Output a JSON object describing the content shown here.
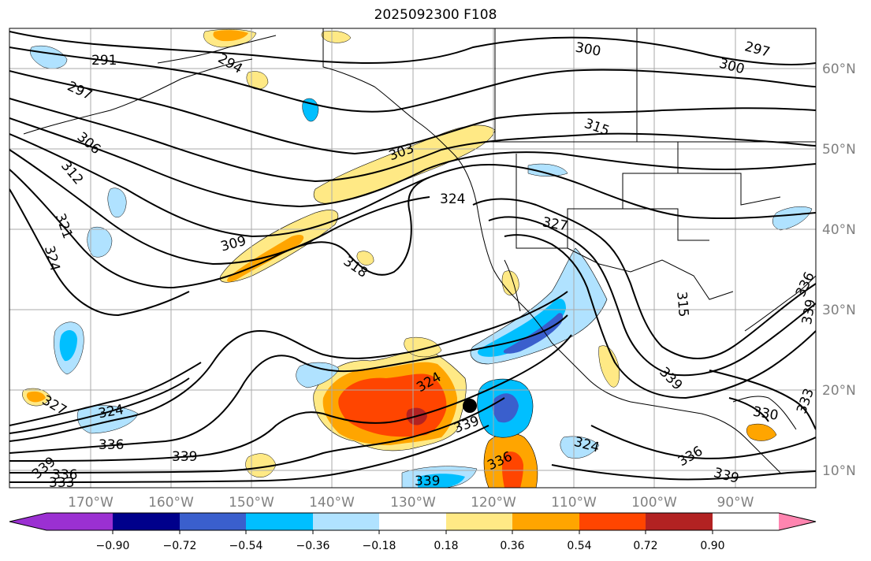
{
  "title": "2025092300 F108",
  "lat_labels": [
    "60°N",
    "50°N",
    "40°N",
    "30°N",
    "20°N",
    "10°N"
  ],
  "lon_labels": [
    "170°W",
    "160°W",
    "150°W",
    "140°W",
    "130°W",
    "120°W",
    "110°W",
    "100°W",
    "90°W"
  ],
  "contour_labels": [
    "291",
    "297",
    "306",
    "312",
    "321",
    "324",
    "294",
    "303",
    "309",
    "318",
    "324",
    "315",
    "300",
    "297",
    "300",
    "327",
    "315",
    "336",
    "339",
    "327",
    "324",
    "336",
    "339",
    "333",
    "336",
    "339",
    "339",
    "339",
    "336",
    "336",
    "330",
    "333",
    "339",
    "339",
    "324"
  ],
  "colorbar": {
    "colors": [
      "#9b30d2",
      "#00008b",
      "#3a5fcd",
      "#00bfff",
      "#b0e2ff",
      "#ffffff",
      "#ffe985",
      "#ffa500",
      "#ff4500",
      "#b22222",
      "#ff85b0"
    ],
    "tick_labels": [
      "−0.90",
      "−0.72",
      "−0.54",
      "−0.36",
      "−0.18",
      "0.18",
      "0.36",
      "0.54",
      "0.72",
      "0.90"
    ]
  },
  "marker": "storm-center"
}
